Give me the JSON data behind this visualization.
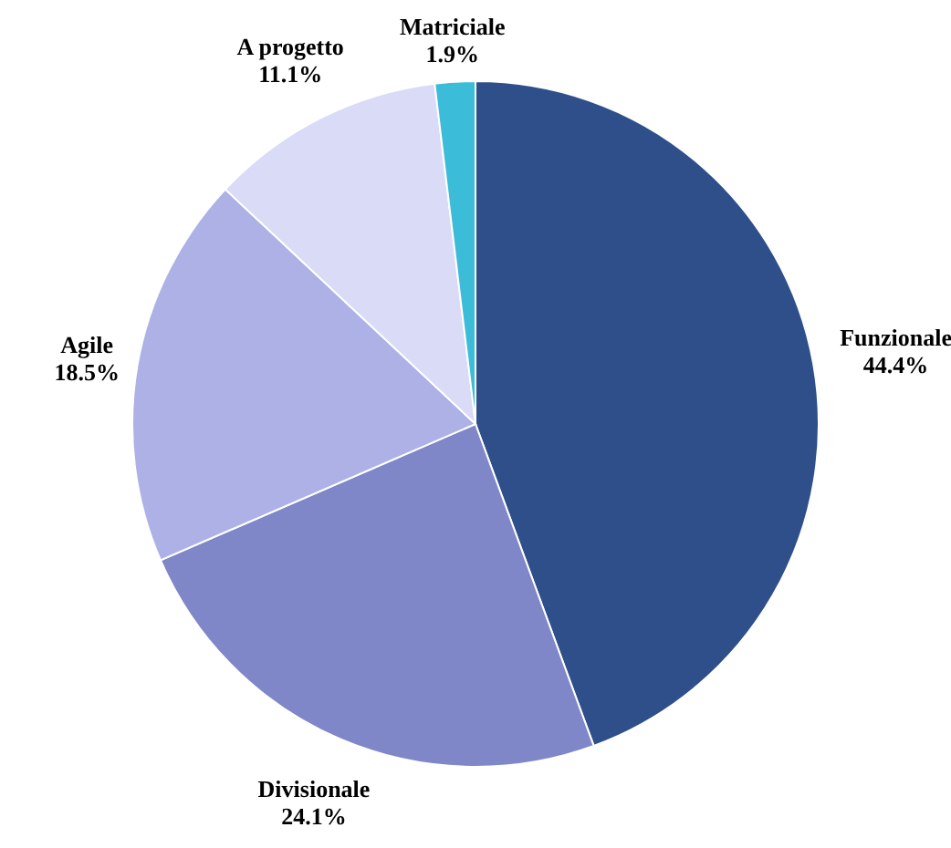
{
  "chart_data": {
    "type": "pie",
    "categories": [
      "Funzionale",
      "Divisionale",
      "Agile",
      "A progetto",
      "Matriciale"
    ],
    "values": [
      44.4,
      24.1,
      18.5,
      11.1,
      1.9
    ],
    "value_labels": [
      "44.4%",
      "24.1%",
      "18.5%",
      "11.1%",
      "1.9%"
    ],
    "colors": [
      "#2e4f8a",
      "#7f87c8",
      "#adb1e6",
      "#d9dbf7",
      "#3bbcd9"
    ]
  }
}
